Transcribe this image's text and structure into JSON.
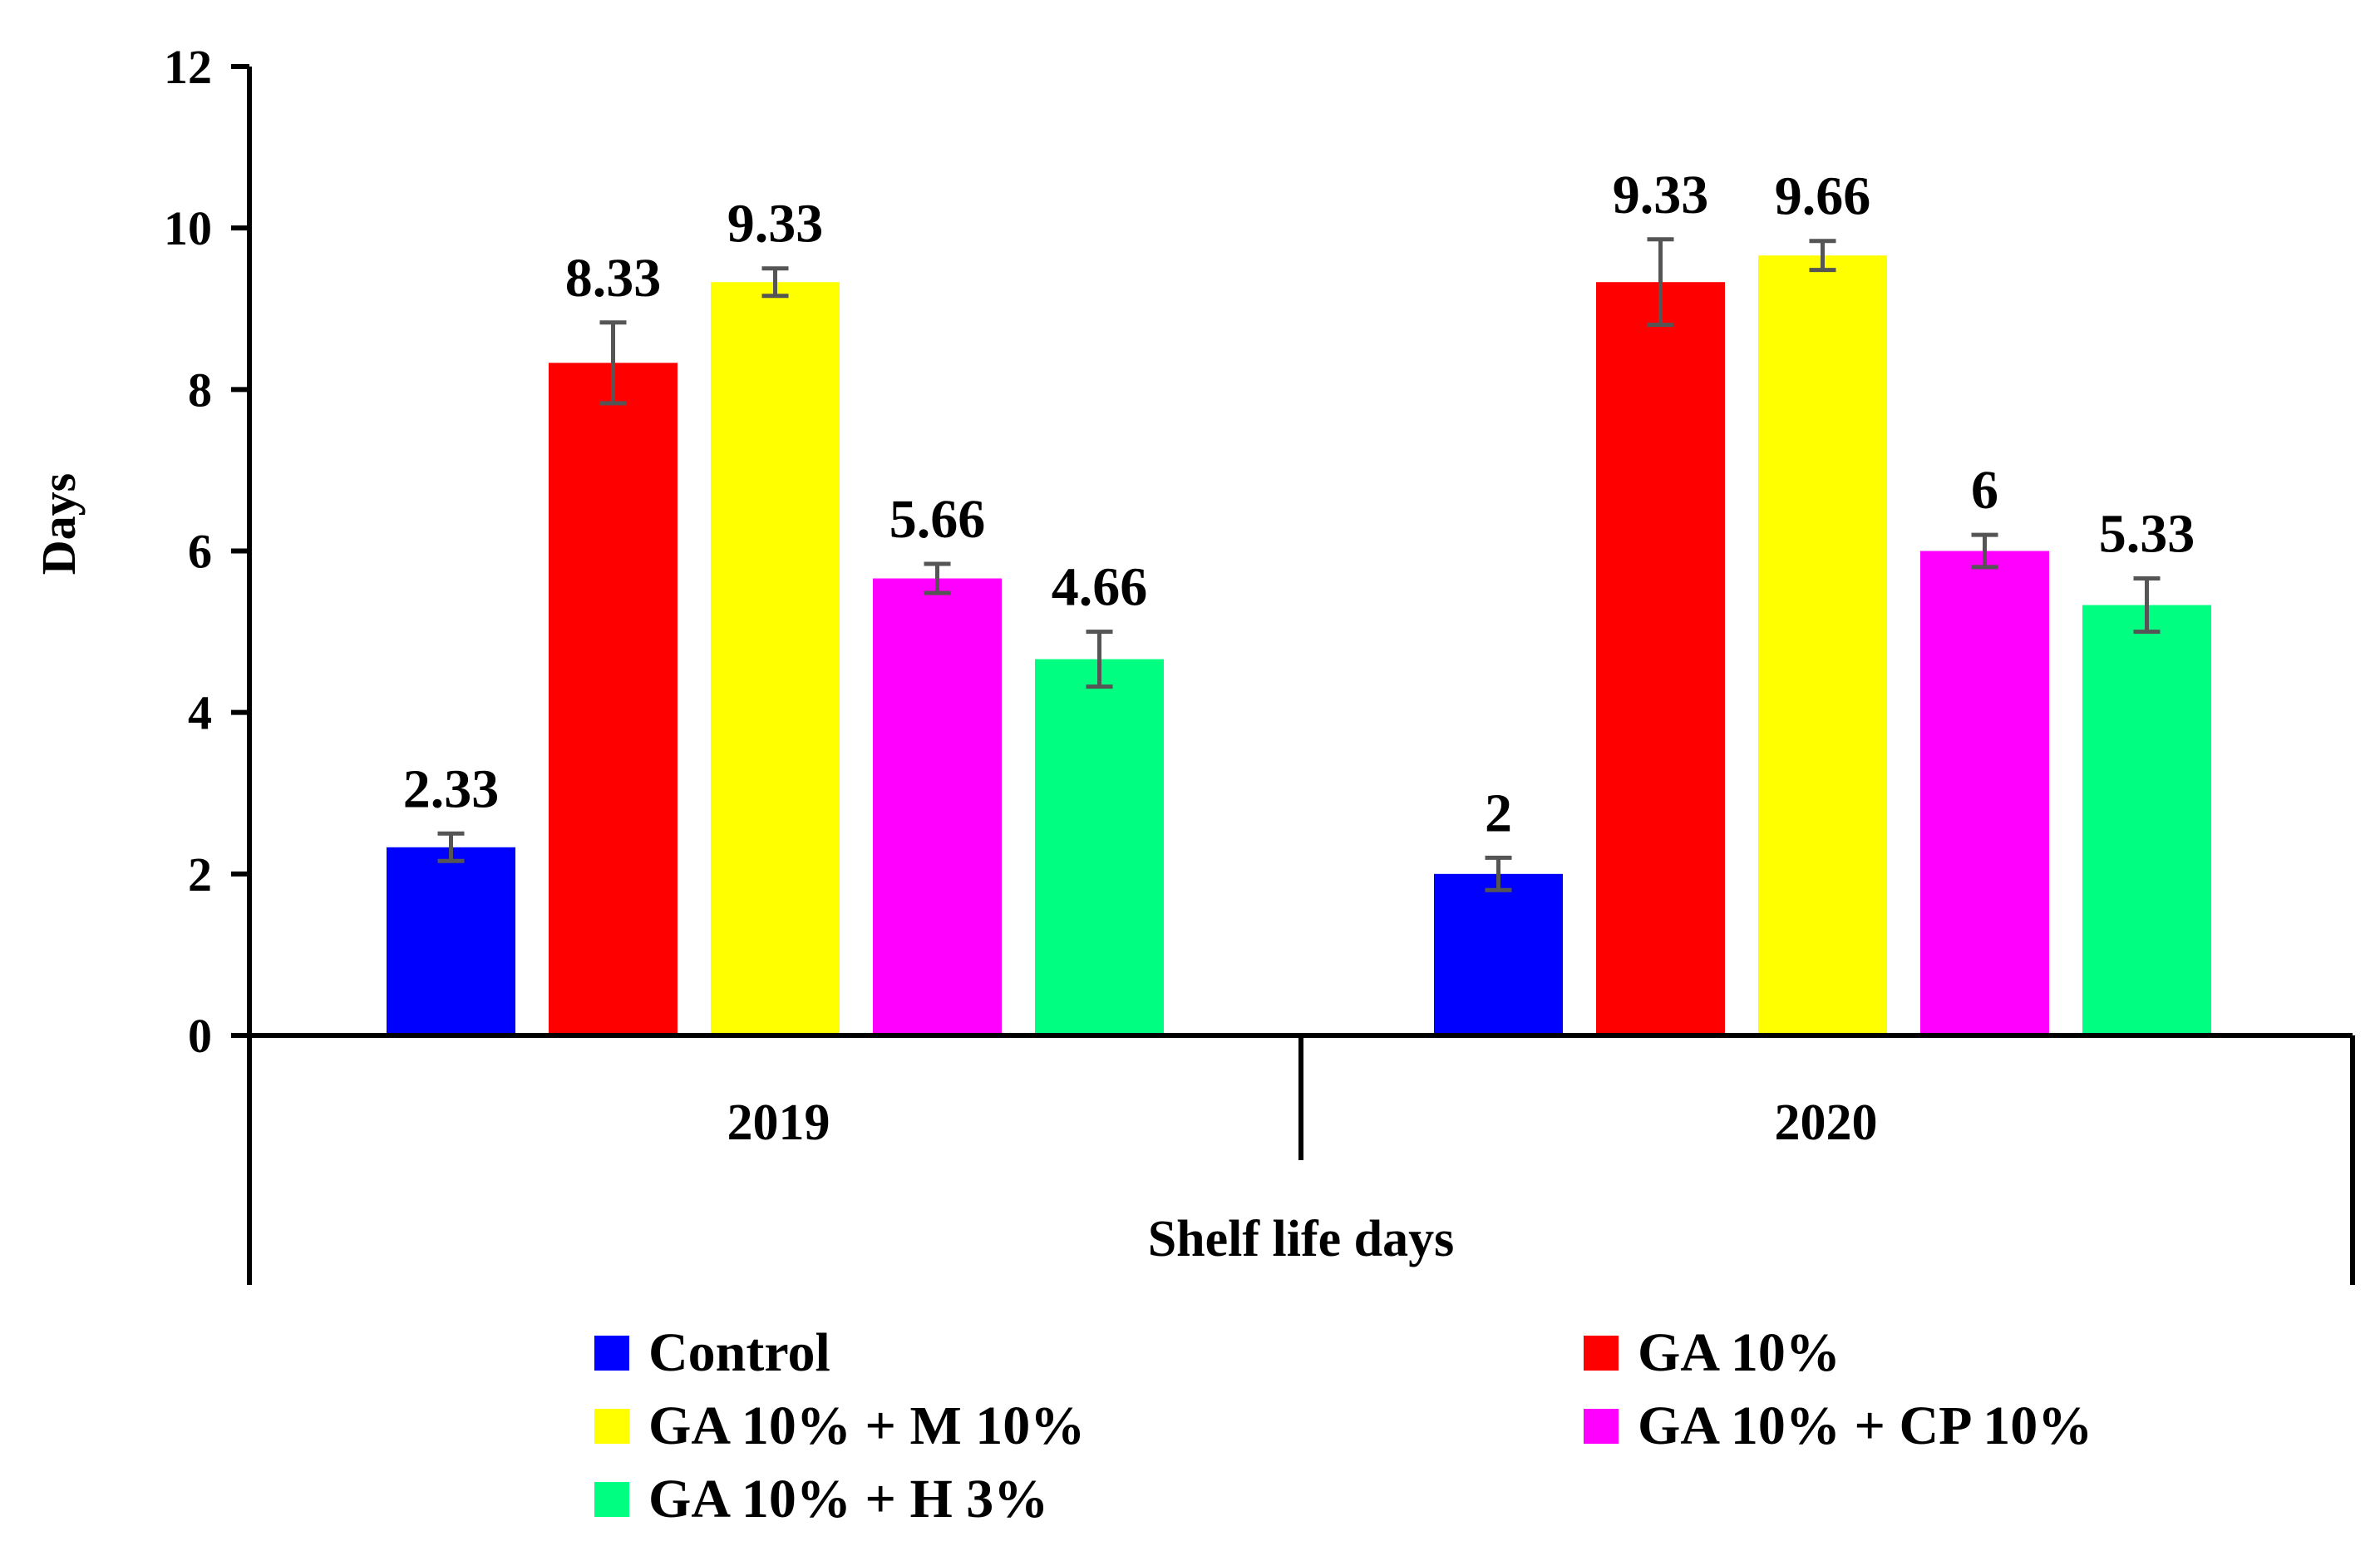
{
  "chart_data": {
    "type": "bar",
    "title": "",
    "xlabel": "Shelf life days",
    "ylabel": "Days",
    "ylim": [
      0,
      12
    ],
    "yticks": [
      0,
      2,
      4,
      6,
      8,
      10,
      12
    ],
    "categories": [
      "2019",
      "2020"
    ],
    "error_bars": true,
    "grid": false,
    "legend_position": "bottom",
    "series": [
      {
        "name": "Control",
        "color": "#0000ff",
        "values": [
          2.33,
          2
        ],
        "labels": [
          "2.33",
          "2"
        ],
        "errors": [
          0.17,
          0.2
        ]
      },
      {
        "name": "GA 10%",
        "color": "#ff0000",
        "values": [
          8.33,
          9.33
        ],
        "labels": [
          "8.33",
          "9.33"
        ],
        "errors": [
          0.5,
          0.53
        ]
      },
      {
        "name": "GA 10% + M 10%",
        "color": "#ffff00",
        "values": [
          9.33,
          9.66
        ],
        "labels": [
          "9.33",
          "9.66"
        ],
        "errors": [
          0.17,
          0.18
        ]
      },
      {
        "name": "GA 10% + CP 10%",
        "color": "#ff00ff",
        "values": [
          5.66,
          6
        ],
        "labels": [
          "5.66",
          "6"
        ],
        "errors": [
          0.18,
          0.2
        ]
      },
      {
        "name": "GA 10% + H 3%",
        "color": "#00ff80",
        "values": [
          4.66,
          5.33
        ],
        "labels": [
          "4.66",
          "5.33"
        ],
        "errors": [
          0.34,
          0.33
        ]
      }
    ]
  }
}
